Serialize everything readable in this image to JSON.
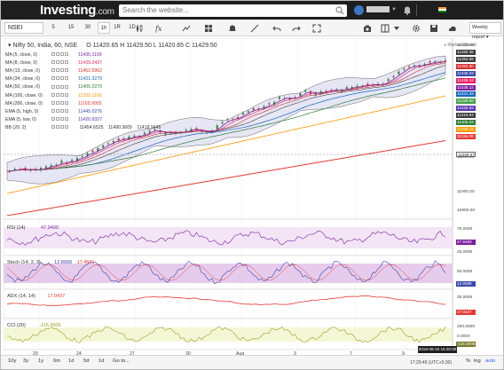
{
  "header": {
    "logo": "Investing",
    "logo_suffix": ".com",
    "search_placeholder": "Search the website..."
  },
  "toolbar": {
    "symbol": "NSEI",
    "timeframes": [
      "5",
      "15",
      "30",
      "1h",
      "1R",
      "1D"
    ],
    "active_timeframe": "1h",
    "weekly_report": "Weekly report"
  },
  "chart": {
    "title": "Nifty 50, India, 60, NSE",
    "ohlc": "O 11420.65  H 11429.50  L 11420.65  C 11429.50",
    "market_status": "Market Closed",
    "indicators": [
      {
        "label": "MA (5, close, 0)",
        "value": "11435.1199",
        "color": "#7b1fa2"
      },
      {
        "label": "MA (8, close, 0)",
        "value": "11439.2437",
        "color": "#e91e63"
      },
      {
        "label": "MA (13, close, 0)",
        "value": "11452.5962",
        "color": "#d32f2f"
      },
      {
        "label": "MA (34, close, 0)",
        "value": "11431.3279",
        "color": "#1565c0"
      },
      {
        "label": "MA (50, close, 0)",
        "value": "11405.0270",
        "color": "#2e7d32"
      },
      {
        "label": "MA (100, close, 0)",
        "value": "11335.1165",
        "color": "#ff9800"
      },
      {
        "label": "MA (200, close, 0)",
        "value": "11165.9955",
        "color": "#e53935"
      },
      {
        "label": "EMA (5, high, 0)",
        "value": "11445.0276",
        "color": "#3949ab"
      },
      {
        "label": "EMA (5, low, 0)",
        "value": "11426.9327",
        "color": "#5e35b1"
      }
    ],
    "bb": {
      "label": "BB (20, 2)",
      "values": [
        "11454.6525",
        "11490.3605",
        "11418.9445"
      ]
    },
    "price_tags": [
      {
        "value": "11490.36",
        "color": "#3a3a3a"
      },
      {
        "value": "11454.65",
        "color": "#3a3a3a"
      },
      {
        "value": "11452.60",
        "color": "#d32f2f"
      },
      {
        "value": "11445.03",
        "color": "#3949ab"
      },
      {
        "value": "11439.24",
        "color": "#e91e63"
      },
      {
        "value": "11435.12",
        "color": "#7b1fa2"
      },
      {
        "value": "11431.33",
        "color": "#1565c0"
      },
      {
        "value": "11429.50",
        "color": "#43a047"
      },
      {
        "value": "11426.93",
        "color": "#5e35b1"
      },
      {
        "value": "11418.94",
        "color": "#3a3a3a"
      },
      {
        "value": "11405.03",
        "color": "#2e7d32"
      },
      {
        "value": "11335.12",
        "color": "#ff9800"
      },
      {
        "value": "11166.00",
        "color": "#e53935"
      }
    ],
    "price_axis": [
      "11500.00",
      "11100.00",
      "11069.57",
      "11000.00",
      "10900.00"
    ],
    "rsi": {
      "label": "RSI (14)",
      "value": "47.9490",
      "tag": "47.9490",
      "axis": [
        "75.0000",
        "25.0000"
      ]
    },
    "stoch": {
      "label": "Stoch (14, 3, 3)",
      "v1": "12.8688",
      "v2": "17.4691",
      "axis": [
        "50.0000",
        "12.8688"
      ]
    },
    "adx": {
      "label": "ADX (14, 14)",
      "value": "17.0437",
      "axis": [
        "30.0000",
        "17.0437"
      ]
    },
    "cci": {
      "label": "CCI (20)",
      "value": "-115.9006",
      "axis": [
        "200.0000",
        "0.0000",
        "-115.9006"
      ]
    },
    "x_labels": [
      "20",
      "24",
      "27",
      "30",
      "Aug",
      "3",
      "7",
      "9"
    ],
    "date_label": "2018-08-10 15:30:00"
  },
  "footer": {
    "ranges": [
      "10y",
      "3y",
      "1y",
      "6m",
      "1d",
      "5d",
      "1d",
      "Go to..."
    ],
    "clock": "17:29:49 (UTC+5:30)",
    "toggles": [
      "%",
      "log",
      "auto"
    ]
  }
}
